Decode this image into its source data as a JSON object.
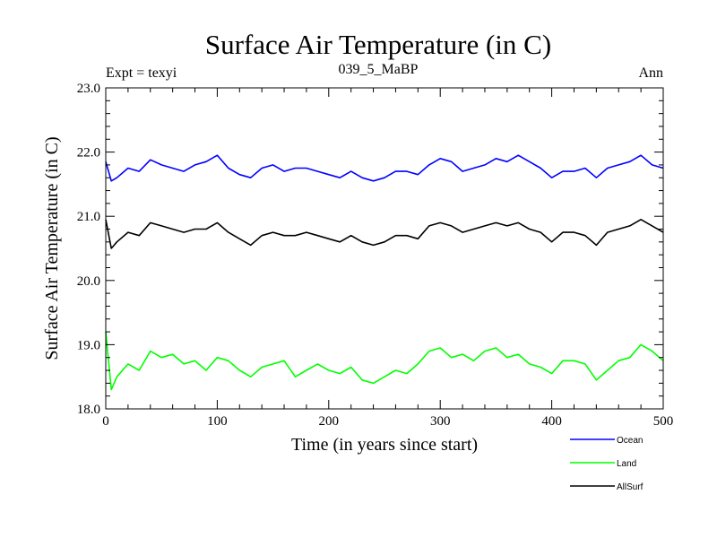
{
  "chart_data": {
    "type": "line",
    "title": "Surface Air Temperature (in C)",
    "subtitle": "039_5_MaBP",
    "top_left_label": "Expt = texyi",
    "top_right_label": "Ann",
    "xlabel": "Time (in years since start)",
    "ylabel": "Surface Air Temperature (in C)",
    "xlim": [
      0,
      500
    ],
    "ylim": [
      18.0,
      23.0
    ],
    "x_ticks": [
      0,
      100,
      200,
      300,
      400,
      500
    ],
    "x_tick_labels": [
      "0",
      "100",
      "200",
      "300",
      "400",
      "500"
    ],
    "y_ticks": [
      18.0,
      19.0,
      20.0,
      21.0,
      22.0,
      23.0
    ],
    "y_tick_labels": [
      "18.0",
      "19.0",
      "20.0",
      "21.0",
      "22.0",
      "23.0"
    ],
    "grid": false,
    "legend_position": "bottom-right, below plot",
    "series": [
      {
        "name": "Ocean",
        "color": "#0000ff",
        "x": [
          0,
          5,
          10,
          20,
          30,
          40,
          50,
          60,
          70,
          80,
          90,
          100,
          110,
          120,
          130,
          140,
          150,
          160,
          170,
          180,
          190,
          200,
          210,
          220,
          230,
          240,
          250,
          260,
          270,
          280,
          290,
          300,
          310,
          320,
          330,
          340,
          350,
          360,
          370,
          380,
          390,
          400,
          410,
          420,
          430,
          440,
          450,
          460,
          470,
          480,
          490,
          500
        ],
        "values": [
          21.85,
          21.55,
          21.6,
          21.75,
          21.7,
          21.88,
          21.8,
          21.75,
          21.7,
          21.8,
          21.85,
          21.95,
          21.75,
          21.65,
          21.6,
          21.75,
          21.8,
          21.7,
          21.75,
          21.75,
          21.7,
          21.65,
          21.6,
          21.7,
          21.6,
          21.55,
          21.6,
          21.7,
          21.7,
          21.65,
          21.8,
          21.9,
          21.85,
          21.7,
          21.75,
          21.8,
          21.9,
          21.85,
          21.95,
          21.85,
          21.75,
          21.6,
          21.7,
          21.7,
          21.75,
          21.6,
          21.75,
          21.8,
          21.85,
          21.95,
          21.8,
          21.75
        ]
      },
      {
        "name": "Land",
        "color": "#00ff00",
        "x": [
          0,
          5,
          10,
          20,
          30,
          40,
          50,
          60,
          70,
          80,
          90,
          100,
          110,
          120,
          130,
          140,
          150,
          160,
          170,
          180,
          190,
          200,
          210,
          220,
          230,
          240,
          250,
          260,
          270,
          280,
          290,
          300,
          310,
          320,
          330,
          340,
          350,
          360,
          370,
          380,
          390,
          400,
          410,
          420,
          430,
          440,
          450,
          460,
          470,
          480,
          490,
          500
        ],
        "values": [
          19.2,
          18.3,
          18.5,
          18.7,
          18.6,
          18.9,
          18.8,
          18.85,
          18.7,
          18.75,
          18.6,
          18.8,
          18.75,
          18.6,
          18.5,
          18.65,
          18.7,
          18.75,
          18.5,
          18.6,
          18.7,
          18.6,
          18.55,
          18.65,
          18.45,
          18.4,
          18.5,
          18.6,
          18.55,
          18.7,
          18.9,
          18.95,
          18.8,
          18.85,
          18.75,
          18.9,
          18.95,
          18.8,
          18.85,
          18.7,
          18.65,
          18.55,
          18.75,
          18.75,
          18.7,
          18.45,
          18.6,
          18.75,
          18.8,
          19.0,
          18.9,
          18.75
        ]
      },
      {
        "name": "AllSurf",
        "color": "#000000",
        "x": [
          0,
          5,
          10,
          20,
          30,
          40,
          50,
          60,
          70,
          80,
          90,
          100,
          110,
          120,
          130,
          140,
          150,
          160,
          170,
          180,
          190,
          200,
          210,
          220,
          230,
          240,
          250,
          260,
          270,
          280,
          290,
          300,
          310,
          320,
          330,
          340,
          350,
          360,
          370,
          380,
          390,
          400,
          410,
          420,
          430,
          440,
          450,
          460,
          470,
          480,
          490,
          500
        ],
        "values": [
          20.95,
          20.5,
          20.6,
          20.75,
          20.7,
          20.9,
          20.85,
          20.8,
          20.75,
          20.8,
          20.8,
          20.9,
          20.75,
          20.65,
          20.55,
          20.7,
          20.75,
          20.7,
          20.7,
          20.75,
          20.7,
          20.65,
          20.6,
          20.7,
          20.6,
          20.55,
          20.6,
          20.7,
          20.7,
          20.65,
          20.85,
          20.9,
          20.85,
          20.75,
          20.8,
          20.85,
          20.9,
          20.85,
          20.9,
          20.8,
          20.75,
          20.6,
          20.75,
          20.75,
          20.7,
          20.55,
          20.75,
          20.8,
          20.85,
          20.95,
          20.85,
          20.75
        ]
      }
    ]
  }
}
